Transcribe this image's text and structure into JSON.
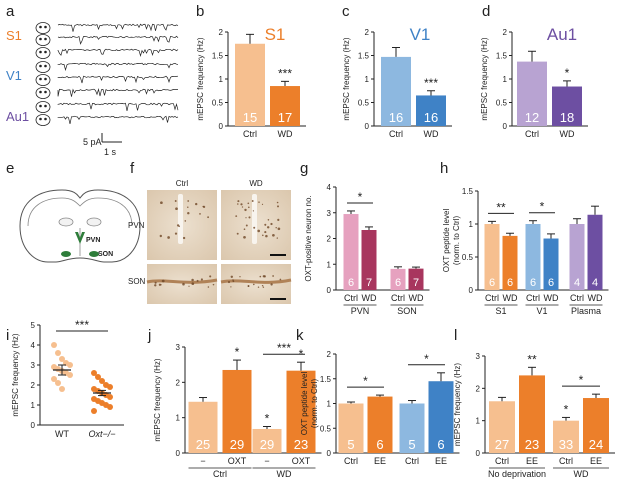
{
  "panel_letters": [
    "a",
    "b",
    "c",
    "d",
    "e",
    "f",
    "g",
    "h",
    "i",
    "j",
    "k",
    "l"
  ],
  "colors": {
    "s1_ctrl": "#f6bf8f",
    "s1_wd": "#ec7f2a",
    "v1_ctrl": "#8db8e0",
    "v1_wd": "#3f82c6",
    "au1_ctrl": "#b8a3d2",
    "au1_wd": "#6d4fa2",
    "oxt_ctrl": "#e6a1bf",
    "oxt_wd": "#a8365e",
    "plasma_ctrl": "#b8a3d2",
    "plasma_wd": "#6d4fa2",
    "orange_light": "#f6bf8f",
    "orange_dark": "#ec7f2a",
    "blue_light": "#8db8e0",
    "blue_dark": "#3f82c6",
    "axis": "#222222",
    "text": "#222222"
  },
  "panel_a": {
    "rows": [
      {
        "label": "S1",
        "color": "#ec7f2a"
      },
      {
        "label": "V1",
        "color": "#3f82c6"
      },
      {
        "label": "Au1",
        "color": "#6d4fa2"
      }
    ],
    "scale_y": "5 pA",
    "scale_x": "1 s"
  },
  "panel_e": {
    "labels": [
      "PVN",
      "SON"
    ]
  },
  "panel_f": {
    "columns": [
      "Ctrl",
      "WD"
    ],
    "rows": [
      "PVN",
      "SON"
    ]
  },
  "chart_data": [
    {
      "id": "b",
      "type": "bar",
      "title": "S1",
      "ylabel": "mEPSC frequency (Hz)",
      "ylim": [
        0,
        2
      ],
      "yticks": [
        0,
        0.5,
        1,
        1.5,
        2
      ],
      "categories": [
        "Ctrl",
        "WD"
      ],
      "values": [
        1.75,
        0.85
      ],
      "errors": [
        0.2,
        0.1
      ],
      "n": [
        "15",
        "17"
      ],
      "sig": [
        {
          "text": "***",
          "at": 1
        }
      ]
    },
    {
      "id": "c",
      "type": "bar",
      "title": "V1",
      "ylabel": "mEPSC frequency (Hz)",
      "ylim": [
        0,
        2
      ],
      "yticks": [
        0,
        0.5,
        1,
        1.5,
        2
      ],
      "categories": [
        "Ctrl",
        "WD"
      ],
      "values": [
        1.47,
        0.65
      ],
      "errors": [
        0.2,
        0.1
      ],
      "n": [
        "16",
        "16"
      ],
      "sig": [
        {
          "text": "***",
          "at": 1
        }
      ]
    },
    {
      "id": "d",
      "type": "bar",
      "title": "Au1",
      "ylabel": "mEPSC frequency (Hz)",
      "ylim": [
        0,
        2
      ],
      "yticks": [
        0,
        0.5,
        1,
        1.5,
        2
      ],
      "categories": [
        "Ctrl",
        "WD"
      ],
      "values": [
        1.37,
        0.84
      ],
      "errors": [
        0.22,
        0.12
      ],
      "n": [
        "12",
        "18"
      ],
      "sig": [
        {
          "text": "*",
          "at": 1
        }
      ]
    },
    {
      "id": "g",
      "type": "bar",
      "ylabel": "OXT-positive neuron no.",
      "ylim": [
        0,
        4
      ],
      "yticks": [
        0,
        1,
        2,
        3,
        4
      ],
      "categories": [
        "Ctrl",
        "WD",
        "Ctrl",
        "WD"
      ],
      "groups": [
        "PVN",
        "SON"
      ],
      "values": [
        2.95,
        2.33,
        0.82,
        0.83
      ],
      "errors": [
        0.12,
        0.12,
        0.08,
        0.06
      ],
      "n": [
        "6",
        "7",
        "6",
        "7"
      ],
      "sig": [
        {
          "text": "*",
          "from": 0,
          "to": 1
        }
      ]
    },
    {
      "id": "h",
      "type": "bar",
      "ylabel": "OXT peptide level (norm. to Ctrl)",
      "ylim": [
        0,
        1.5
      ],
      "yticks": [
        0,
        0.5,
        1,
        1.5
      ],
      "categories": [
        "Ctrl",
        "WD",
        "Ctrl",
        "WD",
        "Ctrl",
        "WD"
      ],
      "groups": [
        "S1",
        "V1",
        "Plasma"
      ],
      "values": [
        1.0,
        0.82,
        1.0,
        0.78,
        1.0,
        1.14
      ],
      "errors": [
        0.04,
        0.04,
        0.05,
        0.07,
        0.08,
        0.13
      ],
      "n": [
        "6",
        "6",
        "6",
        "6",
        "4",
        "4"
      ],
      "sig": [
        {
          "text": "**",
          "from": 0,
          "to": 1
        },
        {
          "text": "*",
          "from": 2,
          "to": 3
        }
      ]
    },
    {
      "id": "i",
      "type": "scatter",
      "ylabel": "mEPSC frequency (Hz)",
      "ylim": [
        0,
        5
      ],
      "yticks": [
        0,
        1,
        2,
        3,
        4,
        5
      ],
      "categories": [
        "WT",
        "Oxt−/−"
      ],
      "points": [
        [
          4.0,
          3.6,
          3.3,
          3.1,
          3.0,
          2.9,
          2.8,
          2.7,
          2.6,
          2.5,
          2.3,
          2.1,
          1.8
        ],
        [
          2.6,
          2.4,
          2.2,
          2.0,
          1.9,
          1.8,
          1.7,
          1.6,
          1.5,
          1.4,
          1.3,
          1.2,
          1.1,
          1.0,
          0.9,
          0.7
        ]
      ],
      "means": [
        2.75,
        1.6
      ],
      "sems": [
        0.25,
        0.13
      ],
      "sig": [
        {
          "text": "***",
          "from": 0,
          "to": 1
        }
      ]
    },
    {
      "id": "j",
      "type": "bar",
      "ylabel": "mEPSC frequency (Hz)",
      "ylim": [
        0,
        3
      ],
      "yticks": [
        0,
        1,
        2,
        3
      ],
      "categories": [
        "−",
        "OXT",
        "−",
        "OXT"
      ],
      "groups": [
        "Ctrl",
        "WD"
      ],
      "values": [
        1.45,
        2.35,
        0.68,
        2.33
      ],
      "errors": [
        0.12,
        0.28,
        0.07,
        0.24
      ],
      "n": [
        "25",
        "29",
        "29",
        "23"
      ],
      "sig": [
        {
          "text": "*",
          "at": 1
        },
        {
          "text": "*",
          "at": 2
        },
        {
          "text": "*",
          "at": 3
        },
        {
          "text": "***",
          "from": 2,
          "to": 3
        }
      ]
    },
    {
      "id": "k",
      "type": "bar",
      "ylabel": "OXT peptide level (norm. to Ctrl)",
      "ylim": [
        0,
        2
      ],
      "yticks": [
        0,
        0.5,
        1,
        1.5,
        2
      ],
      "categories": [
        "Ctrl",
        "EE",
        "Ctrl",
        "EE"
      ],
      "values": [
        1.0,
        1.14,
        1.0,
        1.45
      ],
      "errors": [
        0.03,
        0.03,
        0.06,
        0.17
      ],
      "n": [
        "5",
        "6",
        "5",
        "6"
      ],
      "sig": [
        {
          "text": "*",
          "from": 0,
          "to": 1
        },
        {
          "text": "*",
          "from": 2,
          "to": 3
        }
      ]
    },
    {
      "id": "l",
      "type": "bar",
      "ylabel": "mEPSC frequency (Hz)",
      "ylim": [
        0,
        3
      ],
      "yticks": [
        0,
        1,
        2,
        3
      ],
      "categories": [
        "Ctrl",
        "EE",
        "Ctrl",
        "EE"
      ],
      "groups": [
        "No deprivation",
        "WD"
      ],
      "values": [
        1.6,
        2.4,
        1.0,
        1.7
      ],
      "errors": [
        0.12,
        0.25,
        0.1,
        0.12
      ],
      "n": [
        "27",
        "23",
        "33",
        "24"
      ],
      "sig": [
        {
          "text": "**",
          "at": 1
        },
        {
          "text": "*",
          "at": 2
        },
        {
          "text": "*",
          "from": 2,
          "to": 3
        }
      ]
    }
  ]
}
